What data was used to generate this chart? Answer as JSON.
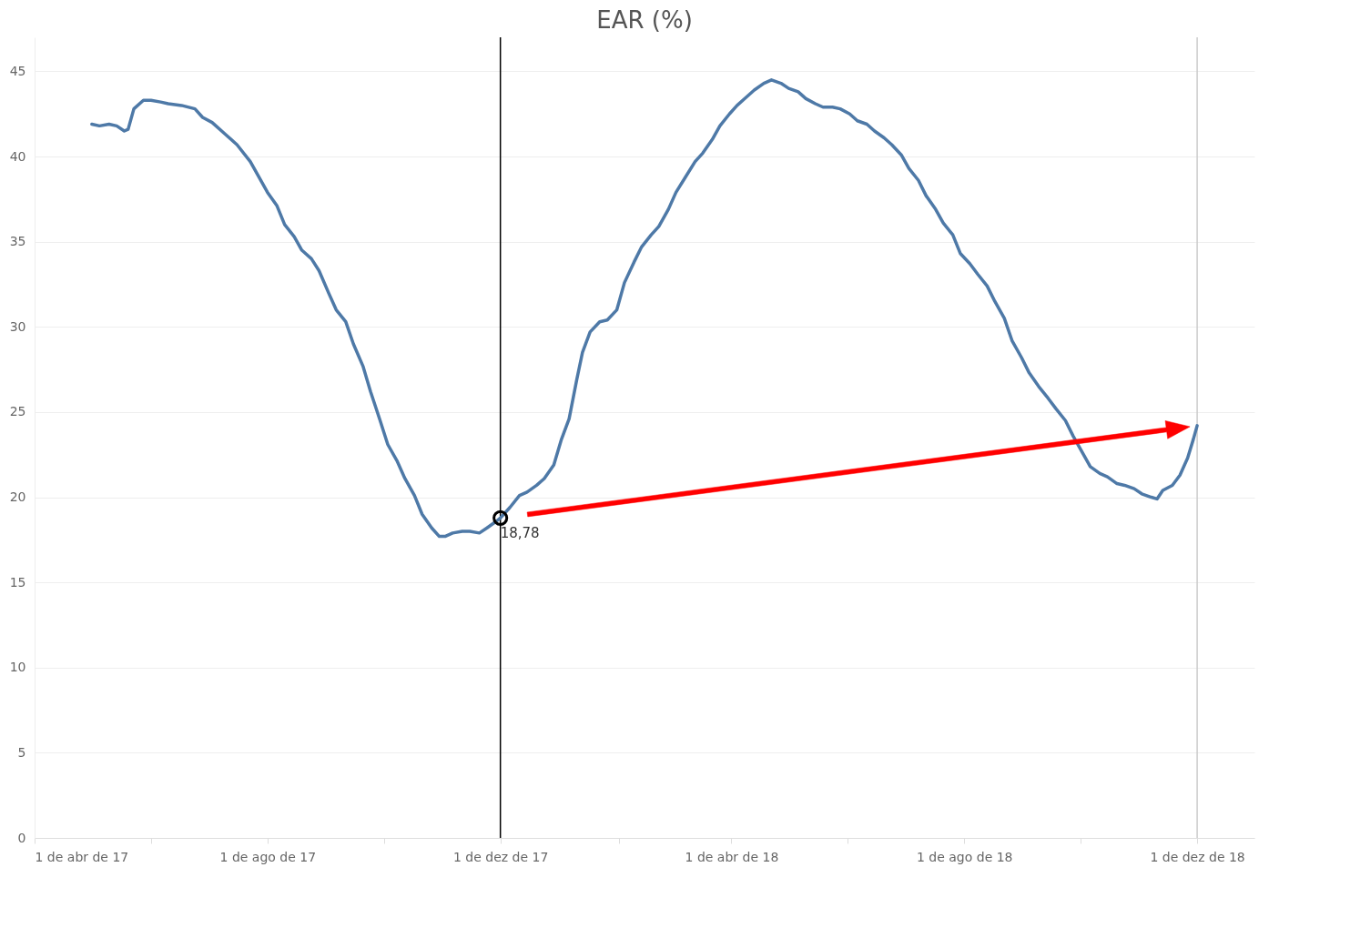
{
  "chart_data": {
    "type": "line",
    "title": "EAR (%)",
    "x": [
      "2017-05-01",
      "2017-05-05",
      "2017-05-10",
      "2017-05-14",
      "2017-05-18",
      "2017-05-20",
      "2017-05-23",
      "2017-05-28",
      "2017-06-01",
      "2017-06-06",
      "2017-06-10",
      "2017-06-17",
      "2017-06-24",
      "2017-06-28",
      "2017-07-03",
      "2017-07-10",
      "2017-07-16",
      "2017-07-23",
      "2017-07-28",
      "2017-08-01",
      "2017-08-06",
      "2017-08-10",
      "2017-08-15",
      "2017-08-19",
      "2017-08-24",
      "2017-08-28",
      "2017-09-02",
      "2017-09-06",
      "2017-09-11",
      "2017-09-15",
      "2017-09-20",
      "2017-09-24",
      "2017-09-29",
      "2017-10-03",
      "2017-10-08",
      "2017-10-12",
      "2017-10-17",
      "2017-10-21",
      "2017-10-26",
      "2017-10-30",
      "2017-11-02",
      "2017-11-06",
      "2017-11-11",
      "2017-11-15",
      "2017-11-20",
      "2017-11-24",
      "2017-11-29",
      "2017-12-01",
      "2017-12-06",
      "2017-12-11",
      "2017-12-15",
      "2017-12-20",
      "2017-12-24",
      "2017-12-29",
      "2018-01-02",
      "2018-01-06",
      "2018-01-10",
      "2018-01-13",
      "2018-01-17",
      "2018-01-22",
      "2018-01-26",
      "2018-01-31",
      "2018-02-04",
      "2018-02-09",
      "2018-02-13",
      "2018-02-18",
      "2018-02-22",
      "2018-02-27",
      "2018-03-03",
      "2018-03-08",
      "2018-03-13",
      "2018-03-17",
      "2018-03-22",
      "2018-03-26",
      "2018-03-31",
      "2018-04-04",
      "2018-04-09",
      "2018-04-13",
      "2018-04-18",
      "2018-04-22",
      "2018-04-27",
      "2018-05-01",
      "2018-05-06",
      "2018-05-10",
      "2018-05-15",
      "2018-05-19",
      "2018-05-24",
      "2018-05-28",
      "2018-06-02",
      "2018-06-06",
      "2018-06-11",
      "2018-06-15",
      "2018-06-20",
      "2018-06-24",
      "2018-06-29",
      "2018-07-03",
      "2018-07-08",
      "2018-07-12",
      "2018-07-17",
      "2018-07-21",
      "2018-07-26",
      "2018-07-30",
      "2018-08-04",
      "2018-08-08",
      "2018-08-13",
      "2018-08-17",
      "2018-08-22",
      "2018-08-26",
      "2018-08-31",
      "2018-09-04",
      "2018-09-09",
      "2018-09-14",
      "2018-09-18",
      "2018-09-23",
      "2018-09-27",
      "2018-10-02",
      "2018-10-06",
      "2018-10-11",
      "2018-10-15",
      "2018-10-20",
      "2018-10-24",
      "2018-10-29",
      "2018-11-02",
      "2018-11-07",
      "2018-11-10",
      "2018-11-13",
      "2018-11-18",
      "2018-11-22",
      "2018-11-26",
      "2018-11-29",
      "2018-12-01"
    ],
    "series": [
      {
        "color": "#4e79a7",
        "values": [
          41.9,
          41.8,
          41.9,
          41.8,
          41.5,
          41.6,
          42.8,
          43.3,
          43.3,
          43.2,
          43.1,
          43.0,
          42.8,
          42.3,
          42.0,
          41.3,
          40.7,
          39.7,
          38.7,
          37.9,
          37.1,
          36.0,
          35.3,
          34.5,
          34.0,
          33.3,
          32.0,
          31.0,
          30.3,
          29.0,
          27.7,
          26.2,
          24.5,
          23.1,
          22.1,
          21.1,
          20.1,
          19.0,
          18.2,
          17.7,
          17.7,
          17.9,
          18.0,
          18.0,
          17.9,
          18.2,
          18.6,
          18.78,
          19.4,
          20.1,
          20.3,
          20.7,
          21.1,
          21.9,
          23.4,
          24.6,
          26.9,
          28.5,
          29.7,
          30.3,
          30.4,
          31.0,
          32.6,
          33.8,
          34.7,
          35.4,
          35.9,
          36.9,
          37.9,
          38.8,
          39.7,
          40.2,
          41.0,
          41.8,
          42.5,
          43.0,
          43.5,
          43.9,
          44.3,
          44.5,
          44.3,
          44.0,
          43.8,
          43.4,
          43.1,
          42.9,
          42.9,
          42.8,
          42.5,
          42.1,
          41.9,
          41.5,
          41.1,
          40.7,
          40.1,
          39.3,
          38.6,
          37.7,
          36.9,
          36.1,
          35.4,
          34.3,
          33.7,
          33.1,
          32.4,
          31.5,
          30.5,
          29.2,
          28.2,
          27.3,
          26.5,
          25.8,
          25.2,
          24.5,
          23.6,
          22.6,
          21.8,
          21.4,
          21.2,
          20.8,
          20.7,
          20.5,
          20.2,
          20.0,
          19.9,
          20.4,
          20.7,
          21.3,
          22.3,
          23.4,
          24.2
        ]
      }
    ],
    "xlim": [
      "2017-04-01",
      "2018-12-31"
    ],
    "xticks": [
      {
        "value": "2017-04-01",
        "label": "1 de abr de 17"
      },
      {
        "value": "2017-06-01",
        "label": null
      },
      {
        "value": "2017-08-01",
        "label": "1 de ago de 17"
      },
      {
        "value": "2017-10-01",
        "label": null
      },
      {
        "value": "2017-12-01",
        "label": "1 de dez de 17"
      },
      {
        "value": "2018-02-01",
        "label": null
      },
      {
        "value": "2018-04-01",
        "label": "1 de abr de 18"
      },
      {
        "value": "2018-06-01",
        "label": null
      },
      {
        "value": "2018-08-01",
        "label": "1 de ago de 18"
      },
      {
        "value": "2018-10-01",
        "label": null
      },
      {
        "value": "2018-12-01",
        "label": "1 de dez de 18"
      }
    ],
    "ylim": [
      0,
      47
    ],
    "yticks": [
      0,
      5,
      10,
      15,
      20,
      25,
      30,
      35,
      40,
      45
    ],
    "grid": "y",
    "line_style": "solid",
    "ref_lines": [
      {
        "axis": "x",
        "value": "2017-12-01",
        "color": "#000000"
      },
      {
        "axis": "x",
        "value": "2018-12-01",
        "color": "#cccccc"
      }
    ],
    "annotations": [
      {
        "text": "18,78",
        "x": "2017-12-01",
        "y": 18.78
      }
    ]
  }
}
